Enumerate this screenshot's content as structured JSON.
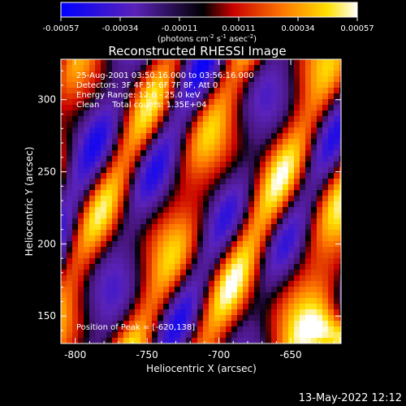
{
  "chart_data": {
    "type": "heatmap",
    "title": "Reconstructed RHESSI Image",
    "xlabel": "Heliocentric X (arcsec)",
    "ylabel": "Heliocentric Y (arcsec)",
    "xlim": [
      -810,
      -615
    ],
    "ylim": [
      131,
      328
    ],
    "x_ticks": [
      "-800",
      "-750",
      "-700",
      "-650"
    ],
    "y_ticks": [
      "150",
      "200",
      "250",
      "300"
    ],
    "colorbar": {
      "ticks": [
        "-0.00057",
        "-0.00034",
        "-0.00011",
        "0.00011",
        "0.00034",
        "0.00057"
      ],
      "range": [
        -0.00057,
        0.00057
      ],
      "label_prefix": "(photons cm",
      "label_exp1": "-2",
      "label_mid": " s",
      "label_exp2": "-1",
      "label_mid2": " asec",
      "label_exp3": "-2",
      "label_suffix": ")"
    },
    "annotations": [
      "25-Aug-2001 03:50:16.000 to 03:56:16.000",
      "Detectors: 3F 4F 5F 6F 7F 8F, Att 0",
      "Energy Range: 12.0 - 25.0 keV",
      "Clean     Total counts: 1.35E+04"
    ],
    "peak_label": "Position of Peak = [-620,138]",
    "peak": {
      "x": -620,
      "y": 138
    }
  },
  "footer": {
    "timestamp": "13-May-2022 12:12"
  }
}
